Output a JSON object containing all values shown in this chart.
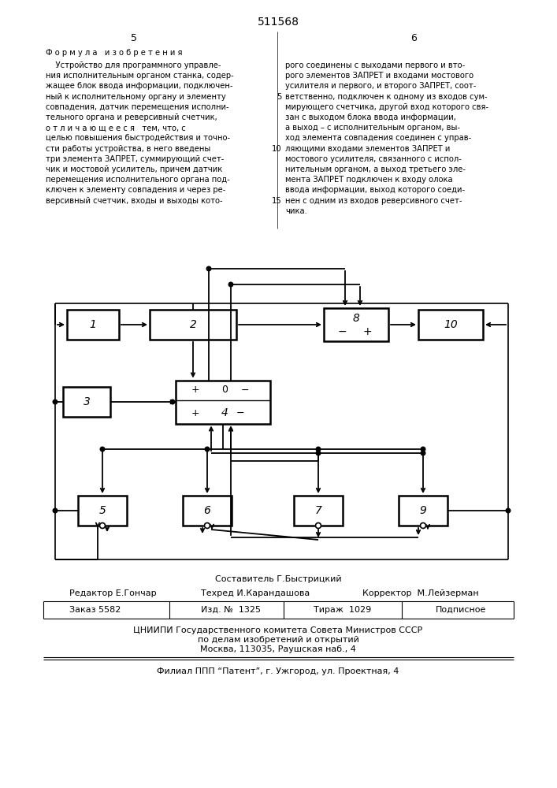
{
  "title": "511568",
  "col1_heading": "Ф о р м у л а   и з о б р е т е н и я",
  "col1_lines": [
    "    Устройство для программного управле-",
    "ния исполнительным органом станка, содер-",
    "жащее блок ввода информации, подключен-",
    "ный к исполнительному органу и элементу",
    "совпадения, датчик перемещения исполни-",
    "тельного органа и реверсивный счетчик,",
    "о т л и ч а ю щ е е с я   тем, что, с",
    "целью повышения быстродействия и точно-",
    "сти работы устройства, в него введены",
    "три элемента ЗАПРЕТ, суммирующий счет-",
    "чик и мостовой усилитель, причем датчик",
    "перемещения исполнительного органа под-",
    "ключен к элементу совпадения и через ре-",
    "версивный счетчик, входы и выходы кото-"
  ],
  "col2_lines": [
    [
      "рого соединены с выходами первого и вто-",
      ""
    ],
    [
      "рого элементов ЗАПРЕТ и входами мостового",
      ""
    ],
    [
      "усилителя и первого, и второго ЗАПРЕТ, соот-",
      ""
    ],
    [
      "ветственно, подключен к одному из входов сум-",
      "5"
    ],
    [
      "мирующего счетчика, другой вход которого свя-",
      ""
    ],
    [
      "зан с выходом блока ввода информации,",
      ""
    ],
    [
      "а выход – с исполнительным органом, вы-",
      ""
    ],
    [
      "ход элемента совпадения соединен с управ-",
      ""
    ],
    [
      "ляющими входами элементов ЗАПРЕТ и",
      "10"
    ],
    [
      "мостового усилителя, связанного с испол-",
      ""
    ],
    [
      "нительным органом, а выход третьего эле-",
      ""
    ],
    [
      "мента ЗАПРЕТ подключен к входу олока",
      ""
    ],
    [
      "ввода информации, выход которого соеди-",
      ""
    ],
    [
      "нен с одним из входов реверсивного счет-",
      "15"
    ],
    [
      "чика.",
      ""
    ]
  ],
  "footer_composer": "Составитель Г.Быстрицкий",
  "footer_editor": "Редактор Е.Гончар",
  "footer_techred": "Техред И.Карандашова",
  "footer_corrector": "Корректор  М.Лейзерман",
  "footer_order": "Заказ 5582",
  "footer_izd": "Изд. №  1325",
  "footer_tirazh": "Тираж  1029",
  "footer_podpisnoe": "Подписное",
  "footer_cniip": "ЦНИИПИ Государственного комитета Совета Министров СССР",
  "footer_po_delam": "по делам изобретений и открытий",
  "footer_moscow": "Москва, 113035, Раушская наб., 4",
  "footer_filial": "Филиал ППП “Патент”, г. Ужгород, ул. Проектная, 4"
}
